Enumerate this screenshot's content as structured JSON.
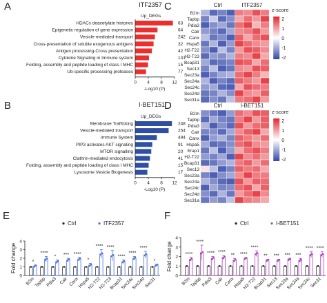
{
  "panel_labels": [
    "A",
    "B",
    "C",
    "D",
    "E",
    "F"
  ],
  "heat_gene_labels": [
    "B2m",
    "Tapbp",
    "Pdia3",
    "Calr",
    "Canx",
    "Hspa5",
    "H2-T22",
    "H2-T23",
    "Bcap31",
    "Sec13",
    "Sec23a",
    "Sec24a",
    "Sec24c",
    "Sec24d",
    "Sec31a"
  ],
  "chart_data": [
    {
      "panel": "A",
      "type": "bar",
      "orientation": "horizontal",
      "title": "ITF2357",
      "legend_title": "Up_DEGs",
      "xlabel": "-Log10 (P)",
      "xticks": [
        0,
        4,
        8,
        12
      ],
      "xlim": [
        0,
        12
      ],
      "categories": [
        "HDACs deacetylate histones",
        "Epigenetic regulation of gene expression",
        "Vesicle-mediated transport",
        "Cross-presentation of soluble exogenous antigens",
        "Antigen processing-Cross presentation",
        "Cytokine Signaling in Immune system",
        "Folding, assembly and peptide loading of class I MHC",
        "Ub-specific processing proteases"
      ],
      "values": [
        11.5,
        6.8,
        6.0,
        5.6,
        5.1,
        4.2,
        3.9,
        3.3
      ],
      "data_labels": [
        "63",
        "64",
        "242",
        "32",
        "42",
        "131",
        "15",
        "77"
      ],
      "bar_color": "#e8312e"
    },
    {
      "panel": "B",
      "type": "bar",
      "orientation": "horizontal",
      "title": "I-BET151",
      "legend_title": "Up_DEGs",
      "xlabel": "-Log10 (P)",
      "xticks": [
        0,
        4,
        8,
        12
      ],
      "xlim": [
        0,
        12
      ],
      "categories": [
        "Membrane Trafficking",
        "Vesicle-mediated transport",
        "Immune System",
        "PIP3 activates AKT signaling",
        "MTOR signalling",
        "Clathrin-mediated endocytosis",
        "Folding, assembly and peptide loading of class I MHC",
        "Lysosome Vesicle Biogenesis"
      ],
      "values": [
        11.2,
        10.2,
        6.6,
        5.2,
        4.9,
        4.5,
        4.1,
        3.7
      ],
      "data_labels": [
        "248",
        "254",
        "494",
        "91",
        "20",
        "41",
        "15",
        "17"
      ],
      "bar_color": "#2e4fa3"
    },
    {
      "panel": "C",
      "type": "heatmap",
      "col_groups": [
        "Ctrl",
        "ITF2357"
      ],
      "legend_title": "z-score",
      "legend_ticks": [
        "2",
        "1",
        "0",
        "-1",
        "-2"
      ],
      "rows": [
        "B2m",
        "Tapbp",
        "Pdia3",
        "Calr",
        "Canx",
        "Hspa5",
        "H2-T22",
        "H2-T23",
        "Bcap31",
        "Sec13",
        "Sec23a",
        "Sec24a",
        "Sec24c",
        "Sec24d",
        "Sec31a"
      ],
      "values": [
        [
          -0.6,
          -1.2,
          -1.0,
          -1.3,
          0.9,
          0.8,
          1.2,
          0.9
        ],
        [
          -1.0,
          -0.4,
          -1.2,
          -0.9,
          0.6,
          1.0,
          0.7,
          1.3
        ],
        [
          -1.3,
          -0.9,
          -0.7,
          -1.1,
          1.0,
          1.3,
          0.5,
          0.9
        ],
        [
          -0.8,
          -1.0,
          -1.2,
          -0.7,
          0.8,
          0.9,
          1.2,
          0.7
        ],
        [
          -0.5,
          -1.1,
          -0.9,
          -1.3,
          1.1,
          0.6,
          1.0,
          1.2
        ],
        [
          -1.1,
          -0.6,
          -1.3,
          -0.8,
          1.3,
          1.0,
          0.8,
          0.7
        ],
        [
          -0.9,
          -1.3,
          -0.5,
          -1.0,
          0.7,
          1.2,
          1.1,
          0.8
        ],
        [
          -1.2,
          -0.8,
          -0.9,
          -0.6,
          0.9,
          0.8,
          1.3,
          0.6
        ],
        [
          -0.7,
          -1.2,
          -1.1,
          -1.0,
          1.2,
          1.1,
          0.6,
          1.0
        ],
        [
          -1.0,
          -0.5,
          -1.3,
          -1.1,
          0.8,
          0.7,
          1.2,
          1.1
        ],
        [
          -1.3,
          -1.0,
          -0.7,
          -0.6,
          1.0,
          1.3,
          0.9,
          0.5
        ],
        [
          -0.6,
          -1.3,
          -1.0,
          -1.2,
          1.1,
          0.9,
          0.7,
          1.3
        ],
        [
          -0.8,
          -0.7,
          -1.2,
          -1.3,
          0.6,
          1.2,
          1.0,
          0.9
        ],
        [
          -1.1,
          -1.0,
          -0.6,
          -0.9,
          1.3,
          0.8,
          0.7,
          1.1
        ],
        [
          -1.2,
          -0.9,
          -1.1,
          -0.5,
          0.9,
          1.0,
          1.3,
          0.7
        ]
      ],
      "colors": {
        "low": "#3346a8",
        "mid": "#ffffff",
        "high": "#e3262e"
      }
    },
    {
      "panel": "D",
      "type": "heatmap",
      "col_groups": [
        "Ctrl",
        "I-BET151"
      ],
      "legend_title": "z-score",
      "legend_ticks": [
        "2",
        "1",
        "0",
        "-1",
        "-2"
      ],
      "rows": [
        "B2m",
        "Tapbp",
        "Pdia3",
        "Calr",
        "Canx",
        "Hspa5",
        "Erap1",
        "H2-T22",
        "Bcap31",
        "Sec13",
        "Sec23a",
        "Sec24a",
        "Sec24c",
        "Sec24d",
        "Sec31a"
      ],
      "values": [
        [
          -0.9,
          -1.1,
          -1.3,
          -0.8,
          1.0,
          0.8,
          1.2,
          1.1
        ],
        [
          -1.2,
          -0.7,
          -1.0,
          -1.1,
          0.9,
          1.3,
          0.7,
          1.1
        ],
        [
          -0.6,
          -1.3,
          -0.9,
          -1.2,
          1.2,
          0.7,
          1.0,
          1.1
        ],
        [
          -1.0,
          -0.9,
          -1.2,
          -0.7,
          0.8,
          1.1,
          1.3,
          0.6
        ],
        [
          -1.3,
          -0.8,
          -0.6,
          -1.0,
          1.1,
          0.9,
          0.7,
          1.0
        ],
        [
          -0.7,
          -1.2,
          -1.1,
          -0.9,
          1.0,
          1.2,
          0.8,
          0.7
        ],
        [
          -1.1,
          -0.5,
          -1.3,
          -0.8,
          0.6,
          1.0,
          1.2,
          0.9
        ],
        [
          -0.8,
          -1.0,
          -0.7,
          -1.3,
          1.3,
          0.8,
          1.0,
          0.7
        ],
        [
          -1.2,
          -1.1,
          -0.8,
          -0.6,
          0.9,
          1.1,
          0.7,
          1.0
        ],
        [
          0.2,
          -0.5,
          -1.3,
          -1.0,
          1.1,
          0.9,
          1.0,
          0.6
        ],
        [
          -1.0,
          -1.3,
          -0.9,
          -0.7,
          0.8,
          1.3,
          0.9,
          0.9
        ],
        [
          -0.6,
          -0.9,
          -1.2,
          -1.3,
          1.2,
          0.7,
          1.1,
          1.0
        ],
        [
          -1.3,
          -0.7,
          -1.0,
          -0.9,
          1.0,
          1.2,
          0.6,
          1.1
        ],
        [
          -0.9,
          -1.2,
          -0.6,
          -1.1,
          0.7,
          1.0,
          1.3,
          0.8
        ],
        [
          -1.1,
          -0.8,
          -1.0,
          -0.5,
          1.3,
          0.9,
          0.8,
          0.6
        ]
      ],
      "colors": {
        "low": "#3346a8",
        "mid": "#ffffff",
        "high": "#e3262e"
      }
    },
    {
      "panel": "E",
      "type": "bar",
      "ylabel": "Fold change",
      "yticks": [
        0,
        1,
        2,
        3,
        4
      ],
      "ylim": [
        0,
        4
      ],
      "legend": [
        "Ctrl",
        "ITF2357"
      ],
      "categories": [
        "B2m",
        "Tapbp",
        "Pdia3",
        "Calr",
        "Canx",
        "Hspa5",
        "H2-T22",
        "H2-T23",
        "Bcap31",
        "Sec24c",
        "Sec24d",
        "Sec31"
      ],
      "series": [
        {
          "name": "Ctrl",
          "values": [
            1,
            1,
            1,
            1,
            1,
            1,
            1,
            1,
            1,
            1,
            1,
            1
          ],
          "errors": [
            0.05,
            0.05,
            0.05,
            0.05,
            0.05,
            0.05,
            0.05,
            0.05,
            0.05,
            0.05,
            0.05,
            0.05
          ]
        },
        {
          "name": "ITF2357",
          "values": [
            1.1,
            1.9,
            1.6,
            1.8,
            1.9,
            1.2,
            2.5,
            2.3,
            1.6,
            2.0,
            2.4,
            1.2
          ],
          "errors": [
            0.1,
            0.3,
            0.2,
            0.2,
            0.2,
            0.2,
            0.5,
            0.6,
            0.2,
            0.2,
            0.4,
            0.1
          ]
        }
      ],
      "significance": [
        "*",
        "****",
        "*",
        "***",
        "****",
        "*",
        "****",
        "****",
        "****",
        "****",
        "****",
        "*"
      ],
      "colors": {
        "Ctrl": "#222222",
        "ITF2357": "#4a6fd8"
      }
    },
    {
      "panel": "F",
      "type": "bar",
      "ylabel": "Fold change",
      "yticks": [
        0,
        1,
        2,
        3,
        4
      ],
      "ylim": [
        0,
        4
      ],
      "legend": [
        "Ctrl",
        "I-BET151"
      ],
      "categories": [
        "B2m",
        "Tapbp",
        "Pdia3",
        "Calr",
        "Canx",
        "Hspa5",
        "H2-T22",
        "Bcap31",
        "Sec13",
        "Sec23a",
        "Sec24a",
        "Sec24c",
        "Sec31"
      ],
      "series": [
        {
          "name": "Ctrl",
          "values": [
            1,
            1,
            1,
            1,
            1,
            1,
            1,
            1,
            1,
            1,
            1,
            1,
            1
          ],
          "errors": [
            0.05,
            0.05,
            0.05,
            0.05,
            0.05,
            0.05,
            0.05,
            0.05,
            0.05,
            0.05,
            0.05,
            0.05,
            0.05
          ]
        },
        {
          "name": "I-BET151",
          "values": [
            1.7,
            2.4,
            1.8,
            1.9,
            1.6,
            1.8,
            2.3,
            1.6,
            1.6,
            1.7,
            1.6,
            2.2,
            2.2
          ],
          "errors": [
            0.2,
            0.8,
            0.2,
            0.2,
            0.2,
            0.1,
            0.3,
            0.1,
            0.1,
            0.1,
            0.2,
            0.3,
            0.3
          ]
        }
      ],
      "significance": [
        "****",
        "****",
        "****",
        "****",
        "**",
        "****",
        "****",
        "**",
        "***",
        "***",
        "***",
        "****",
        "****"
      ],
      "colors": {
        "Ctrl": "#222222",
        "I-BET151": "#b23ec3"
      }
    }
  ]
}
